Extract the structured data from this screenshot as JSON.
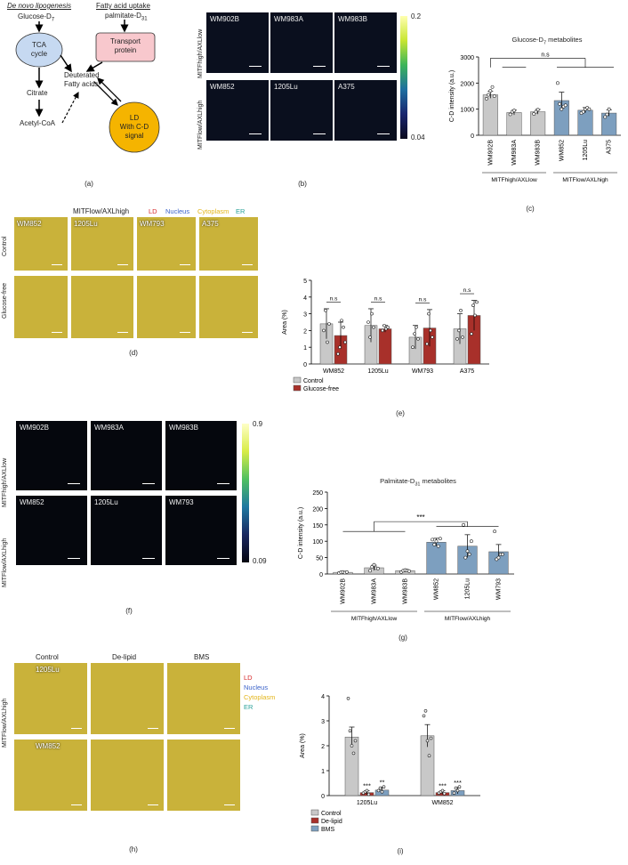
{
  "panel_a": {
    "de_novo_title": "De novo lipogenesis",
    "fa_uptake_title": "Fatty acid uptake",
    "glucose": "Glucose-D",
    "glucose_sub": "7",
    "palmitate": "palmitate-D",
    "palmitate_sub": "31",
    "tca_line1": "TCA",
    "tca_line2": "cycle",
    "transport_line1": "Transport",
    "transport_line2": "protein",
    "citrate": "Citrate",
    "acetyl": "Acetyl-CoA",
    "deut1": "Deuterated",
    "deut2": "Fatty acids",
    "ld1": "LD",
    "ld2": "With C-D",
    "ld3": "signal",
    "colors": {
      "tca": "#c6d9f1",
      "transport": "#f8c8cd",
      "ld": "#f5b400"
    }
  },
  "panel_labels": {
    "a": "(a)",
    "b": "(b)",
    "c": "(c)",
    "d": "(d)",
    "e": "(e)",
    "f": "(f)",
    "g": "(g)",
    "h": "(h)",
    "i": "(i)"
  },
  "panel_b": {
    "row1_label": "MITFhigh/AXLlow",
    "row2_label": "MITFlow/AXLhigh",
    "cells": [
      "WM902B",
      "WM983A",
      "WM983B",
      "WM852",
      "1205Lu",
      "A375"
    ],
    "cbar_max": "0.2",
    "cbar_min": "0.04"
  },
  "panel_c": {
    "title": "Glucose-D7 metabolites",
    "ylabel": "C-D intensity (a.u.)",
    "sig": "n.s",
    "group1": "MITFhigh/AXLlow",
    "group2": "MITFlow/AXLhigh"
  },
  "panel_d": {
    "header": "MITFlow/AXLhigh",
    "channels": [
      "LD",
      "Nucleus",
      "Cytoplasm",
      "ER"
    ],
    "channel_colors": [
      "#d62728",
      "#3a62c9",
      "#e3b51a",
      "#2aa198"
    ],
    "rows": [
      "Control",
      "Glucose-free"
    ],
    "cells": [
      "WM852",
      "1205Lu",
      "WM793",
      "A375"
    ]
  },
  "panel_e": {
    "ylabel": "Area (%)",
    "sig": "n.s",
    "legend": [
      "Control",
      "Glucose-free"
    ]
  },
  "panel_f": {
    "row1_label": "MITFhigh/AXLlow",
    "row2_label": "MITFlow/AXLhigh",
    "cells": [
      "WM902B",
      "WM983A",
      "WM983B",
      "WM852",
      "1205Lu",
      "WM793"
    ],
    "cbar_max": "0.9",
    "cbar_min": "0.09"
  },
  "panel_g": {
    "title": "Palmitate-D31 metabolites",
    "ylabel": "C-D intensity (a.u.)",
    "sig": "***",
    "group1": "MITFhigh/AXLlow",
    "group2": "MITFlow/AXLhigh"
  },
  "panel_h": {
    "cols": [
      "Control",
      "De-lipid",
      "BMS"
    ],
    "row_label": "MITFlow/AXLhigh",
    "cells": [
      "1205Lu",
      "WM852"
    ],
    "channels": [
      "LD",
      "Nucleus",
      "Cytoplasm",
      "ER"
    ]
  },
  "panel_i": {
    "ylabel": "Area (%)",
    "legend": [
      "Control",
      "De-lipid",
      "BMS"
    ],
    "sig_1205": [
      "***",
      "**"
    ],
    "sig_wm852": [
      "***",
      "***"
    ]
  },
  "chart_data": [
    {
      "type": "bar",
      "categories": [
        "WM902B",
        "WM983A",
        "WM983B",
        "WM852",
        "1205Lu",
        "A375"
      ],
      "values": [
        1550,
        870,
        900,
        1330,
        960,
        850
      ],
      "errors": [
        130,
        90,
        90,
        320,
        100,
        120
      ],
      "colors": [
        "#c8c8c8",
        "#c8c8c8",
        "#c8c8c8",
        "#7d9fbf",
        "#7d9fbf",
        "#7d9fbf"
      ],
      "points": [
        [
          1400,
          1550,
          1700,
          1850,
          1500
        ],
        [
          800,
          900,
          950
        ],
        [
          820,
          900,
          980
        ],
        [
          2000,
          1200,
          1000,
          1100,
          1150
        ],
        [
          850,
          900,
          1000,
          1050,
          1000
        ],
        [
          700,
          800,
          1000
        ]
      ],
      "title": "Glucose-D7 metabolites",
      "ylabel": "C-D intensity (a.u.)",
      "ylim": [
        0,
        3000
      ],
      "yticks": [
        0,
        1000,
        2000,
        3000
      ]
    },
    {
      "type": "bar",
      "categories": [
        "WM852",
        "1205Lu",
        "WM793",
        "A375"
      ],
      "series": [
        {
          "name": "Control",
          "values": [
            2.4,
            2.3,
            1.6,
            2.1
          ],
          "errors": [
            0.9,
            1.0,
            0.7,
            0.9
          ]
        },
        {
          "name": "Glucose-free",
          "values": [
            1.7,
            2.1,
            2.15,
            2.9
          ],
          "errors": [
            0.8,
            0.2,
            1.1,
            0.9
          ]
        }
      ],
      "colors": [
        "#c8c8c8",
        "#a8302a"
      ],
      "ylabel": "Area (%)",
      "ylim": [
        0,
        5
      ],
      "yticks": [
        0,
        1,
        2,
        3,
        4,
        5
      ]
    },
    {
      "type": "bar",
      "categories": [
        "WM902B",
        "WM983A",
        "WM983B",
        "WM852",
        "1205Lu",
        "WM793"
      ],
      "values": [
        5,
        19,
        10,
        97,
        85,
        68
      ],
      "errors": [
        3,
        8,
        4,
        12,
        35,
        22
      ],
      "colors": [
        "#c8c8c8",
        "#c8c8c8",
        "#c8c8c8",
        "#7d9fbf",
        "#7d9fbf",
        "#7d9fbf"
      ],
      "points": [
        [
          3,
          5,
          6,
          4,
          6
        ],
        [
          10,
          22,
          28,
          18,
          17
        ],
        [
          6,
          10,
          12,
          11,
          9
        ],
        [
          105,
          90,
          100,
          85,
          108
        ],
        [
          150,
          50,
          70,
          60,
          100
        ],
        [
          130,
          45,
          50,
          60,
          60
        ]
      ],
      "title": "Palmitate-D31 metabolites",
      "ylabel": "C-D intensity (a.u.)",
      "ylim": [
        0,
        250
      ],
      "yticks": [
        0,
        50,
        100,
        150,
        200,
        250
      ]
    },
    {
      "type": "bar",
      "categories": [
        "1205Lu",
        "WM852"
      ],
      "series": [
        {
          "name": "Control",
          "values": [
            2.35,
            2.4
          ],
          "errors": [
            0.4,
            0.45
          ]
        },
        {
          "name": "De-lipid",
          "values": [
            0.12,
            0.12
          ],
          "errors": [
            0.08,
            0.07
          ]
        },
        {
          "name": "BMS",
          "values": [
            0.22,
            0.2
          ],
          "errors": [
            0.12,
            0.13
          ]
        }
      ],
      "colors": [
        "#c8c8c8",
        "#a8302a",
        "#7d9fbf"
      ],
      "ylabel": "Area (%)",
      "ylim": [
        0,
        4
      ],
      "yticks": [
        0,
        1,
        2,
        3,
        4
      ]
    }
  ]
}
